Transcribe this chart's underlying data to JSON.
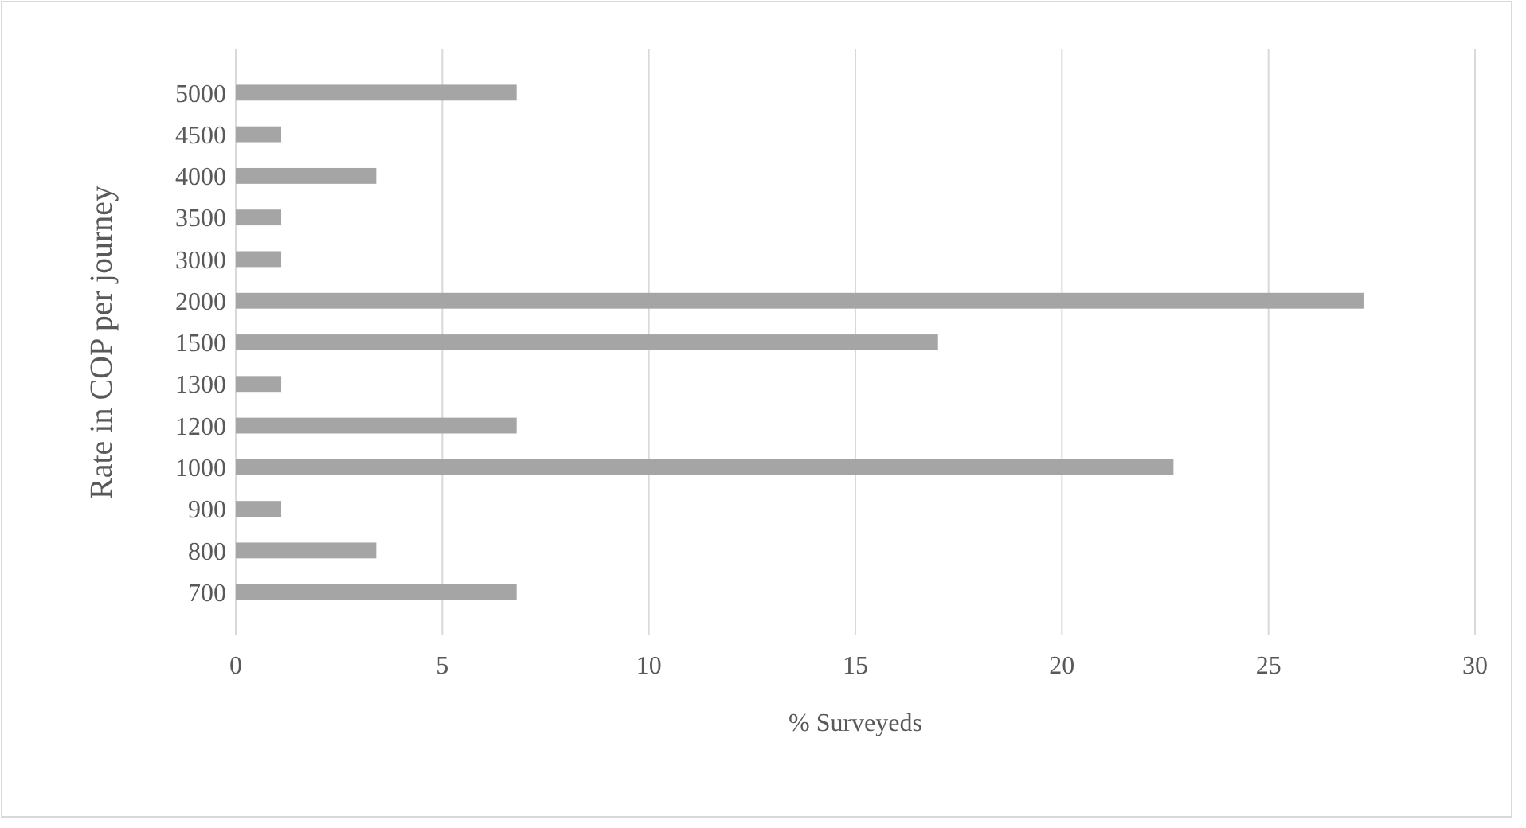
{
  "chart_data": {
    "type": "bar",
    "orientation": "horizontal",
    "xlabel": "% Surveyeds",
    "ylabel": "Rate in COP per journey",
    "categories": [
      "5000",
      "4500",
      "4000",
      "3500",
      "3000",
      "2000",
      "1500",
      "1300",
      "1200",
      "1000",
      "900",
      "800",
      "700"
    ],
    "values": [
      6.8,
      1.1,
      3.4,
      1.1,
      1.1,
      27.3,
      17.0,
      1.1,
      6.8,
      22.7,
      1.1,
      3.4,
      6.8
    ],
    "color": "#a5a5a5",
    "xlim": [
      0,
      30
    ],
    "xticks": [
      0,
      5,
      10,
      15,
      20,
      25,
      30
    ],
    "grid": "x"
  }
}
